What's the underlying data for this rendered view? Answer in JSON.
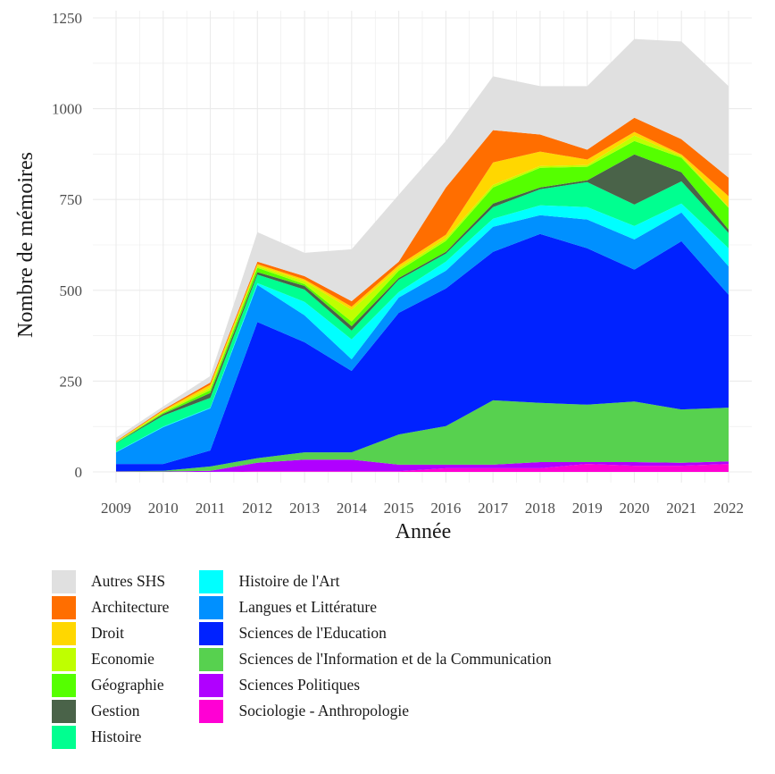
{
  "chart_data": {
    "type": "area",
    "stacked": true,
    "title": "",
    "xlabel": "Année",
    "ylabel": "Nombre de mémoires",
    "x": [
      2009,
      2010,
      2011,
      2012,
      2013,
      2014,
      2015,
      2016,
      2017,
      2018,
      2019,
      2020,
      2021,
      2022
    ],
    "x_tick_labels": [
      "2009",
      "2010",
      "2011",
      "2012",
      "2013",
      "2014",
      "2015",
      "2016",
      "2017",
      "2018",
      "2019",
      "2020",
      "2021",
      "2022"
    ],
    "ylim": [
      0,
      1250
    ],
    "y_ticks": [
      0,
      250,
      500,
      750,
      1000,
      1250
    ],
    "y_tick_labels": [
      "0",
      "250",
      "500",
      "750",
      "1000",
      "1250"
    ],
    "grid": true,
    "legend_position": "bottom",
    "stack_order_bottom_to_top": [
      "Sociologie - Anthropologie",
      "Sciences Politiques",
      "Sciences de l'Information et de la Communication",
      "Sciences de l'Education",
      "Langues et Littérature",
      "Histoire de l'Art",
      "Histoire",
      "Gestion",
      "Géographie",
      "Economie",
      "Droit",
      "Architecture",
      "Autres SHS"
    ],
    "series": [
      {
        "name": "Autres SHS",
        "color": "#e0e0e0",
        "values": [
          9,
          8,
          18,
          81,
          64,
          143,
          184,
          128,
          148,
          133,
          175,
          217,
          269,
          252
        ]
      },
      {
        "name": "Architecture",
        "color": "#ff6e00",
        "values": [
          2,
          3,
          6,
          7,
          9,
          15,
          10,
          130,
          89,
          47,
          27,
          39,
          42,
          51
        ]
      },
      {
        "name": "Droit",
        "color": "#ffd700",
        "values": [
          1,
          3,
          8,
          5,
          5,
          9,
          8,
          10,
          62,
          40,
          15,
          10,
          4,
          30
        ]
      },
      {
        "name": "Economie",
        "color": "#bfff00",
        "values": [
          1,
          3,
          7,
          5,
          8,
          32,
          7,
          7,
          7,
          5,
          5,
          15,
          5,
          2
        ]
      },
      {
        "name": "Géographie",
        "color": "#55ff00",
        "values": [
          1,
          3,
          8,
          12,
          5,
          13,
          20,
          30,
          44,
          54,
          37,
          37,
          40,
          60
        ]
      },
      {
        "name": "Gestion",
        "color": "#4a6349",
        "values": [
          1,
          5,
          13,
          7,
          10,
          12,
          5,
          5,
          10,
          5,
          5,
          138,
          25,
          9
        ]
      },
      {
        "name": "Histoire",
        "color": "#00ff90",
        "values": [
          24,
          30,
          27,
          23,
          34,
          24,
          34,
          22,
          32,
          44,
          69,
          59,
          61,
          42
        ]
      },
      {
        "name": "Histoire de l'Art",
        "color": "#00ffff",
        "values": [
          1,
          2,
          2,
          5,
          37,
          55,
          15,
          25,
          22,
          27,
          34,
          37,
          25,
          50
        ]
      },
      {
        "name": "Langues et Littérature",
        "color": "#0090ff",
        "values": [
          32,
          101,
          116,
          102,
          74,
          32,
          42,
          49,
          69,
          52,
          79,
          83,
          79,
          78
        ]
      },
      {
        "name": "Sciences de l'Education",
        "color": "#0022ff",
        "values": [
          20,
          19,
          44,
          375,
          303,
          224,
          335,
          379,
          409,
          465,
          431,
          363,
          463,
          311
        ]
      },
      {
        "name": "Sciences de l'Information et de la Communication",
        "color": "#57d14f",
        "values": [
          1,
          2,
          12,
          13,
          20,
          20,
          83,
          106,
          177,
          163,
          158,
          167,
          147,
          148
        ]
      },
      {
        "name": "Sciences Politiques",
        "color": "#b000ff",
        "values": [
          1,
          1,
          3,
          23,
          32,
          32,
          18,
          10,
          10,
          17,
          5,
          10,
          8,
          7
        ]
      },
      {
        "name": "Sociologie - Anthropologie",
        "color": "#ff00d4",
        "values": [
          0,
          0,
          0,
          2,
          2,
          2,
          2,
          10,
          10,
          10,
          22,
          17,
          17,
          22
        ]
      }
    ],
    "totals": [
      94,
      180,
      264,
      660,
      603,
      613,
      763,
      911,
      1089,
      1062,
      1062,
      1192,
      1185,
      1062
    ]
  },
  "legend": {
    "columns": [
      [
        "Autres SHS",
        "Architecture",
        "Droit",
        "Economie",
        "Géographie",
        "Gestion",
        "Histoire"
      ],
      [
        "Histoire de l'Art",
        "Langues et Littérature",
        "Sciences de l'Education",
        "Sciences de l'Information et de la Communication",
        "Sciences Politiques",
        "Sociologie - Anthropologie"
      ]
    ]
  },
  "colors": {
    "panel_background": "#ffffff",
    "grid": "#ebebeb",
    "tick_text": "#4d4d4d"
  }
}
